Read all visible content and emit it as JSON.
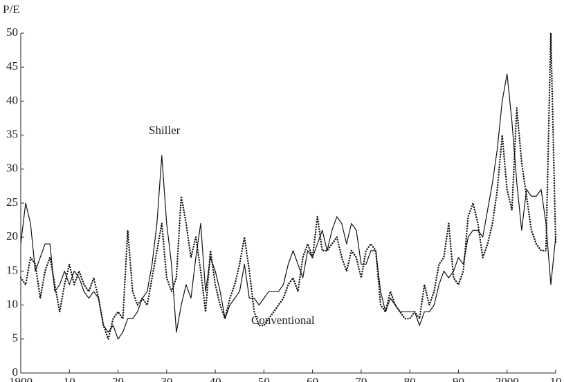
{
  "chart_data": {
    "type": "line",
    "y_axis_label": "P/E",
    "annotations": [
      "Shiller",
      "Conventional"
    ],
    "x": [
      1900,
      1901,
      1902,
      1903,
      1904,
      1905,
      1906,
      1907,
      1908,
      1909,
      1910,
      1911,
      1912,
      1913,
      1914,
      1915,
      1916,
      1917,
      1918,
      1919,
      1920,
      1921,
      1922,
      1923,
      1924,
      1925,
      1926,
      1927,
      1928,
      1929,
      1930,
      1931,
      1932,
      1933,
      1934,
      1935,
      1936,
      1937,
      1938,
      1939,
      1940,
      1941,
      1942,
      1943,
      1944,
      1945,
      1946,
      1947,
      1948,
      1949,
      1950,
      1951,
      1952,
      1953,
      1954,
      1955,
      1956,
      1957,
      1958,
      1959,
      1960,
      1961,
      1962,
      1963,
      1964,
      1965,
      1966,
      1967,
      1968,
      1969,
      1970,
      1971,
      1972,
      1973,
      1974,
      1975,
      1976,
      1977,
      1978,
      1979,
      1980,
      1981,
      1982,
      1983,
      1984,
      1985,
      1986,
      1987,
      1988,
      1989,
      1990,
      1991,
      1992,
      1993,
      1994,
      1995,
      1996,
      1997,
      1998,
      1999,
      2000,
      2001,
      2002,
      2003,
      2004,
      2005,
      2006,
      2007,
      2008,
      2009,
      2010
    ],
    "series": [
      {
        "name": "Shiller",
        "color": "#111111",
        "style": "solid",
        "values": [
          19,
          25,
          22,
          15,
          17,
          19,
          19,
          12,
          13,
          15,
          13,
          15,
          14,
          12,
          11,
          12,
          11,
          7,
          6,
          7,
          5,
          6,
          8,
          8,
          9,
          11,
          12,
          16,
          22,
          32,
          22,
          16,
          6,
          10,
          13,
          11,
          17,
          22,
          12,
          17,
          15,
          12,
          8,
          10,
          11,
          12,
          16,
          11,
          11,
          10,
          11,
          12,
          12,
          12,
          13,
          16,
          18,
          16,
          14,
          18,
          17,
          19,
          21,
          18,
          21,
          23,
          22,
          19,
          22,
          21,
          16,
          16,
          18,
          18,
          12,
          9,
          11,
          10,
          9,
          9,
          9,
          9,
          7,
          9,
          9,
          10,
          13,
          15,
          14,
          15,
          17,
          16,
          20,
          21,
          21,
          20,
          24,
          28,
          33,
          40,
          44,
          37,
          28,
          21,
          27,
          26,
          26,
          27,
          22,
          13,
          20
        ]
      },
      {
        "name": "Conventional",
        "color": "#111111",
        "style": "dotted",
        "values": [
          14,
          13,
          17,
          16,
          11,
          15,
          17,
          13,
          9,
          13,
          16,
          13,
          15,
          13,
          12,
          14,
          11,
          7,
          5,
          8,
          9,
          8,
          21,
          12,
          10,
          11,
          10,
          14,
          18,
          22,
          14,
          12,
          14,
          26,
          22,
          17,
          20,
          15,
          9,
          18,
          13,
          10,
          8,
          11,
          13,
          16,
          20,
          15,
          9,
          7,
          7,
          8,
          9,
          10,
          11,
          13,
          14,
          12,
          17,
          19,
          17,
          23,
          18,
          18,
          19,
          20,
          17,
          15,
          18,
          17,
          14,
          18,
          19,
          18,
          10,
          9,
          12,
          10,
          9,
          8,
          8,
          9,
          8,
          13,
          10,
          12,
          16,
          17,
          22,
          14,
          13,
          15,
          23,
          25,
          22,
          17,
          19,
          22,
          27,
          35,
          27,
          24,
          39,
          31,
          26,
          21,
          19,
          18,
          18,
          50,
          19
        ]
      }
    ],
    "xlim": [
      1900,
      2010
    ],
    "xticks": [
      1900,
      {
        "value": 1910,
        "label": "10"
      },
      {
        "value": 1920,
        "label": "20"
      },
      {
        "value": 1930,
        "label": "30"
      },
      {
        "value": 1940,
        "label": "40"
      },
      {
        "value": 1950,
        "label": "50"
      },
      {
        "value": 1960,
        "label": "60"
      },
      {
        "value": 1970,
        "label": "70"
      },
      {
        "value": 1980,
        "label": "80"
      },
      {
        "value": 1990,
        "label": "90"
      },
      2000,
      {
        "value": 2010,
        "label": "10"
      }
    ],
    "ylim": [
      0,
      50
    ],
    "yticks": [
      0,
      5,
      10,
      15,
      20,
      25,
      30,
      35,
      40,
      45,
      50
    ]
  }
}
